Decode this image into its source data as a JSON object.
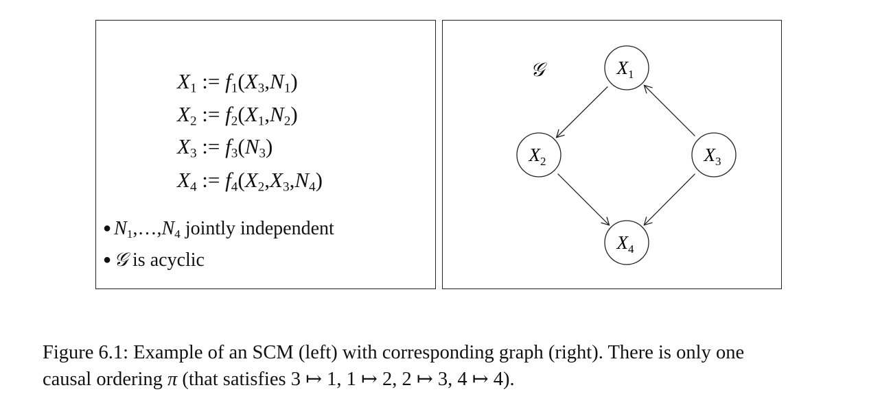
{
  "scm": {
    "equations": [
      {
        "lhs": "X",
        "lhs_sub": "1",
        "assign": " := ",
        "fn": "f",
        "fn_sub": "1",
        "args": [
          {
            "v": "X",
            "s": "3"
          },
          {
            "v": "N",
            "s": "1"
          }
        ]
      },
      {
        "lhs": "X",
        "lhs_sub": "2",
        "assign": " := ",
        "fn": "f",
        "fn_sub": "2",
        "args": [
          {
            "v": "X",
            "s": "1"
          },
          {
            "v": "N",
            "s": "2"
          }
        ]
      },
      {
        "lhs": "X",
        "lhs_sub": "3",
        "assign": " := ",
        "fn": "f",
        "fn_sub": "3",
        "args": [
          {
            "v": "N",
            "s": "3"
          }
        ]
      },
      {
        "lhs": "X",
        "lhs_sub": "4",
        "assign": " := ",
        "fn": "f",
        "fn_sub": "4",
        "args": [
          {
            "v": "X",
            "s": "2"
          },
          {
            "v": "X",
            "s": "3"
          },
          {
            "v": "N",
            "s": "4"
          }
        ]
      }
    ],
    "bullet1": {
      "n1": "N",
      "n1_sub": "1",
      "dots": ",…,",
      "n4": "N",
      "n4_sub": "4",
      "text": " jointly independent"
    },
    "bullet2": {
      "g": "𝒢",
      "text": " is acyclic"
    }
  },
  "graph": {
    "label": "𝒢",
    "nodes": [
      {
        "id": "X1",
        "var": "X",
        "sub": "1"
      },
      {
        "id": "X2",
        "var": "X",
        "sub": "2"
      },
      {
        "id": "X3",
        "var": "X",
        "sub": "3"
      },
      {
        "id": "X4",
        "var": "X",
        "sub": "4"
      }
    ],
    "edges": [
      {
        "from": "X1",
        "to": "X2"
      },
      {
        "from": "X3",
        "to": "X1"
      },
      {
        "from": "X2",
        "to": "X4"
      },
      {
        "from": "X3",
        "to": "X4"
      }
    ]
  },
  "caption": {
    "line1": "Figure 6.1: Example of an SCM (left) with corresponding graph (right). There is only one",
    "line2_a": "causal ordering ",
    "pi": "π",
    "line2_b": " (that satisfies 3 ↦ 1, 1 ↦ 2, 2 ↦ 3, 4 ↦ 4)."
  }
}
